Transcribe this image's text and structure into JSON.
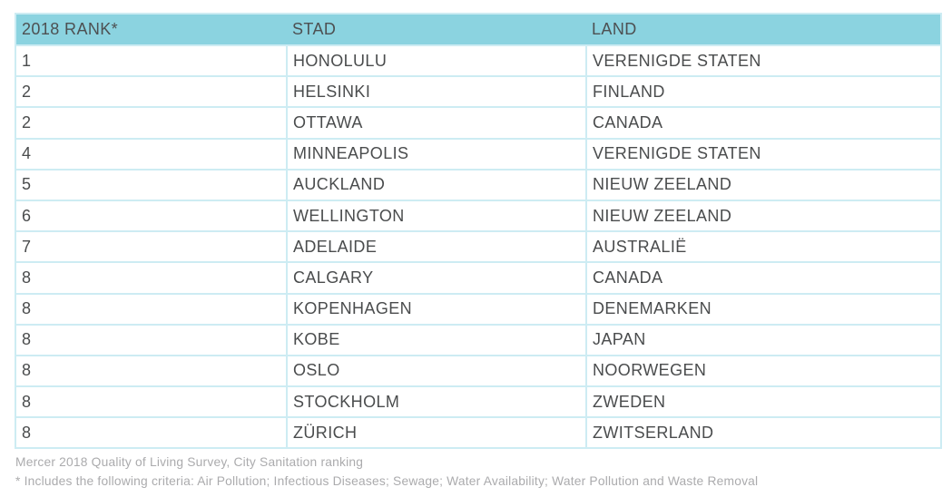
{
  "chart_data": {
    "type": "table",
    "columns": [
      "2018 RANK*",
      "STAD",
      "LAND"
    ],
    "rows": [
      [
        "1",
        "HONOLULU",
        "VERENIGDE STATEN"
      ],
      [
        "2",
        "HELSINKI",
        "FINLAND"
      ],
      [
        "2",
        "OTTAWA",
        "CANADA"
      ],
      [
        "4",
        "MINNEAPOLIS",
        "VERENIGDE STATEN"
      ],
      [
        "5",
        "AUCKLAND",
        "NIEUW ZEELAND"
      ],
      [
        "6",
        "WELLINGTON",
        "NIEUW ZEELAND"
      ],
      [
        "7",
        "ADELAIDE",
        "AUSTRALIË"
      ],
      [
        "8",
        "CALGARY",
        "CANADA"
      ],
      [
        "8",
        "KOPENHAGEN",
        "DENEMARKEN"
      ],
      [
        "8",
        "KOBE",
        "JAPAN"
      ],
      [
        "8",
        "OSLO",
        "NOORWEGEN"
      ],
      [
        "8",
        "STOCKHOLM",
        "ZWEDEN"
      ],
      [
        "8",
        "ZÜRICH",
        "ZWITSERLAND"
      ]
    ],
    "title": "Mercer 2018 Quality of Living Survey, City Sanitation ranking",
    "legend_position": "none",
    "grid": true
  },
  "footer": {
    "source": "Mercer 2018 Quality of Living Survey, City Sanitation ranking",
    "note": "* Includes the following criteria: Air Pollution; Infectious Diseases; Sewage; Water Availability; Water Pollution and Waste Removal"
  },
  "colors": {
    "header_bg": "#8bd3e0",
    "table_border": "#cdecf3",
    "header_text": "#4d5052",
    "body_text": "#4a4c4d",
    "footer_text": "#ababad"
  }
}
